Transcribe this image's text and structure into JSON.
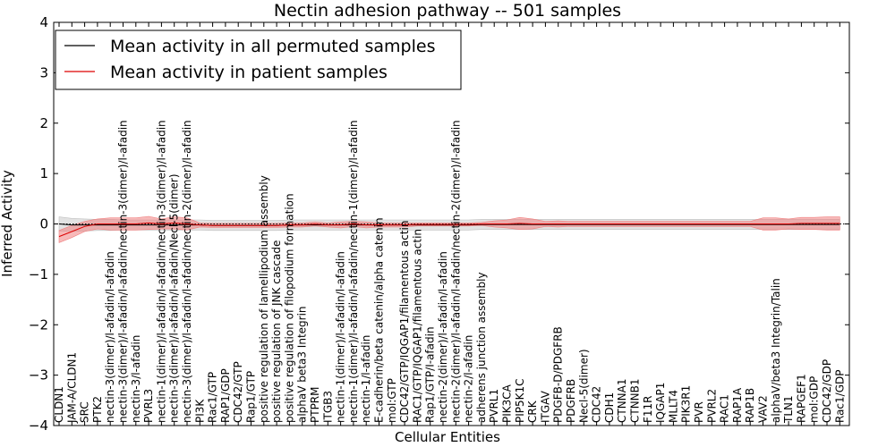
{
  "chart_data": {
    "type": "line",
    "title": "Nectin adhesion pathway -- 501 samples",
    "xlabel": "Cellular Entities",
    "ylabel": "Inferred Activity",
    "ylim": [
      -4,
      4
    ],
    "yticks": [
      -4,
      -3,
      -2,
      -1,
      0,
      1,
      2,
      3,
      4
    ],
    "ytick_labels": [
      "−4",
      "−3",
      "−2",
      "−1",
      "0",
      "1",
      "2",
      "3",
      "4"
    ],
    "legend_position": "top-left",
    "categories": [
      "CLDN1",
      "JAM-A/CLDN1",
      "SRC",
      "PTK2",
      "nectin-3(dimer)/l-afadin/l-afadin",
      "nectin-3(dimer)/l-afadin/l-afadin/nectin-3(dimer)/l-afadin",
      "nectin-3/l-afadin",
      "PVRL3",
      "nectin-1(dimer)/l-afadin/l-afadin/nectin-3(dimer)/l-afadin",
      "nectin-3(dimer)/l-afadin/l-afadin/Necl-5(dimer)",
      "nectin-3(dimer)/l-afadin/l-afadin/nectin-2(dimer)/l-afadin",
      "PI3K",
      "Rac1/GTP",
      "RAP1/GDP",
      "CDC42/GTP",
      "Rap1/GTP",
      "positive regulation of lamellipodium assembly",
      "positive regulation of JNK cascade",
      "positive regulation of filopodium formation",
      "alphaV beta3 Integrin",
      "PTPRM",
      "ITGB3",
      "nectin-1(dimer)/l-afadin/l-afadin",
      "nectin-1(dimer)/l-afadin/l-afadin/nectin-1(dimer)/l-afadin",
      "nectin-1/l-afadin",
      "E-cadherin/beta catenin/alpha catenin",
      "mol:GTP",
      "CDC42/GTP/IQGAP1/filamentous actin",
      "RAC1/GTP/IQGAP1/filamentous actin",
      "Rap1/GTP/I-afadin",
      "nectin-2(dimer)/l-afadin/l-afadin",
      "nectin-2(dimer)/l-afadin/l-afadin/nectin-2(dimer)/l-afadin",
      "nectin-2/l-afadin",
      "adherens junction assembly",
      "PVRL1",
      "PIK3CA",
      "PIP5K1C",
      "CRK",
      "ITGAV",
      "PDGFB-D/PDGFRB",
      "PDGFRB",
      "Necl-5(dimer)",
      "CDC42",
      "CDH1",
      "CTNNA1",
      "CTNNB1",
      "F11R",
      "IQGAP1",
      "MLLT4",
      "PIK3R1",
      "PVR",
      "PVRL2",
      "RAC1",
      "RAP1A",
      "RAP1B",
      "VAV2",
      "alphaV/beta3 Integrin/Talin",
      "TLN1",
      "RAPGEF1",
      "mol:GDP",
      "CDC42/GDP",
      "Rac1/GDP"
    ],
    "series": [
      {
        "name": "Mean activity in all permuted samples",
        "color": "#000000",
        "values": [
          0.0,
          -0.02,
          -0.02,
          -0.02,
          -0.02,
          -0.02,
          -0.02,
          -0.02,
          -0.02,
          -0.02,
          -0.02,
          -0.02,
          -0.03,
          -0.03,
          -0.03,
          -0.03,
          -0.03,
          -0.03,
          -0.02,
          -0.02,
          -0.02,
          -0.02,
          -0.02,
          -0.02,
          -0.02,
          -0.02,
          -0.02,
          -0.02,
          -0.02,
          -0.02,
          -0.02,
          -0.02,
          -0.02,
          -0.01,
          -0.01,
          -0.01,
          -0.01,
          -0.01,
          -0.01,
          -0.01,
          -0.01,
          -0.01,
          -0.01,
          -0.01,
          -0.01,
          -0.01,
          -0.01,
          -0.01,
          -0.01,
          -0.01,
          -0.01,
          -0.01,
          -0.01,
          -0.01,
          -0.01,
          -0.01,
          -0.01,
          -0.01,
          -0.01,
          -0.01,
          -0.01,
          -0.01
        ],
        "band_color": "#bfbfbf",
        "band_half_width": [
          0.14,
          0.13,
          0.12,
          0.11,
          0.11,
          0.1,
          0.1,
          0.1,
          0.1,
          0.1,
          0.1,
          0.1,
          0.1,
          0.1,
          0.1,
          0.1,
          0.1,
          0.1,
          0.1,
          0.1,
          0.1,
          0.1,
          0.1,
          0.1,
          0.1,
          0.1,
          0.1,
          0.1,
          0.1,
          0.1,
          0.1,
          0.1,
          0.1,
          0.1,
          0.1,
          0.1,
          0.1,
          0.1,
          0.1,
          0.1,
          0.1,
          0.1,
          0.1,
          0.1,
          0.1,
          0.1,
          0.1,
          0.1,
          0.1,
          0.1,
          0.1,
          0.1,
          0.1,
          0.1,
          0.1,
          0.1,
          0.1,
          0.1,
          0.1,
          0.1,
          0.1,
          0.1
        ]
      },
      {
        "name": "Mean activity in patient samples",
        "color": "#dd0000",
        "values": [
          -0.25,
          -0.15,
          -0.05,
          0.0,
          0.0,
          0.0,
          0.0,
          0.02,
          0.0,
          0.02,
          0.0,
          -0.02,
          -0.03,
          -0.03,
          -0.03,
          -0.03,
          -0.03,
          -0.03,
          -0.02,
          -0.02,
          0.0,
          -0.02,
          -0.02,
          0.0,
          -0.02,
          -0.02,
          -0.02,
          -0.02,
          -0.01,
          -0.01,
          -0.01,
          -0.01,
          -0.01,
          0.0,
          0.0,
          0.0,
          0.01,
          0.0,
          0.0,
          0.0,
          0.0,
          0.0,
          0.0,
          0.0,
          0.0,
          0.0,
          0.0,
          0.0,
          0.0,
          0.0,
          0.0,
          0.0,
          0.0,
          0.0,
          0.0,
          0.0,
          0.0,
          0.0,
          0.01,
          0.01,
          0.01,
          0.01
        ],
        "band_color": "#f08080",
        "band_half_width": [
          0.12,
          0.12,
          0.1,
          0.1,
          0.12,
          0.12,
          0.12,
          0.13,
          0.1,
          0.12,
          0.12,
          0.04,
          0.04,
          0.04,
          0.04,
          0.04,
          0.04,
          0.04,
          0.04,
          0.04,
          0.04,
          0.04,
          0.06,
          0.05,
          0.06,
          0.04,
          0.04,
          0.04,
          0.03,
          0.03,
          0.03,
          0.03,
          0.03,
          0.03,
          0.06,
          0.08,
          0.12,
          0.1,
          0.05,
          0.06,
          0.05,
          0.05,
          0.05,
          0.05,
          0.05,
          0.05,
          0.05,
          0.05,
          0.05,
          0.05,
          0.05,
          0.05,
          0.05,
          0.05,
          0.05,
          0.12,
          0.12,
          0.1,
          0.12,
          0.12,
          0.13,
          0.13
        ]
      }
    ],
    "reference_line": {
      "y": 0,
      "style": "dotted",
      "color": "#000000"
    }
  }
}
